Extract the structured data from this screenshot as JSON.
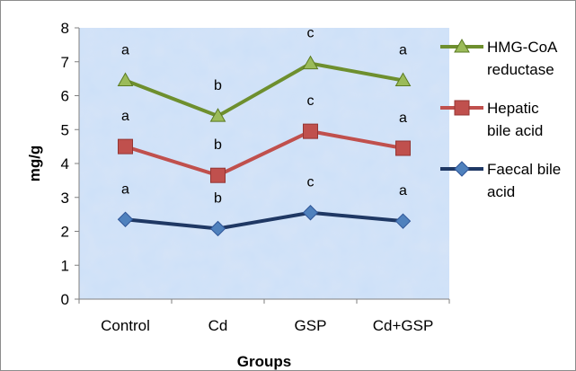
{
  "chart_data": {
    "type": "line",
    "categories": [
      "Control",
      "Cd",
      "GSP",
      "Cd+GSP"
    ],
    "xlabel": "Groups",
    "ylabel": "mg/g",
    "ylim": [
      0,
      8
    ],
    "yticks": [
      0,
      1,
      2,
      3,
      4,
      5,
      6,
      7,
      8
    ],
    "grid": false,
    "legend_position": "right",
    "series": [
      {
        "name": "HMG-CoA reductase",
        "legend_lines": [
          "HMG-CoA",
          "reductase"
        ],
        "values": [
          6.45,
          5.4,
          6.95,
          6.45
        ],
        "significance": [
          "a",
          "b",
          "c",
          "a"
        ],
        "color": "#6e8f2e",
        "marker": "triangle",
        "marker_color": "#9bbb59"
      },
      {
        "name": "Hepatic bile acid",
        "legend_lines": [
          "Hepatic",
          "bile acid"
        ],
        "values": [
          4.5,
          3.65,
          4.95,
          4.45
        ],
        "significance": [
          "a",
          "b",
          "c",
          "a"
        ],
        "color": "#c0504d",
        "marker": "square",
        "marker_color": "#c0504d"
      },
      {
        "name": "Faecal bile acid",
        "legend_lines": [
          "Faecal bile",
          "acid"
        ],
        "values": [
          2.35,
          2.08,
          2.55,
          2.3
        ],
        "significance": [
          "a",
          "b",
          "c",
          "a"
        ],
        "color": "#1f3864",
        "marker": "diamond",
        "marker_color": "#4f81bd"
      }
    ]
  }
}
